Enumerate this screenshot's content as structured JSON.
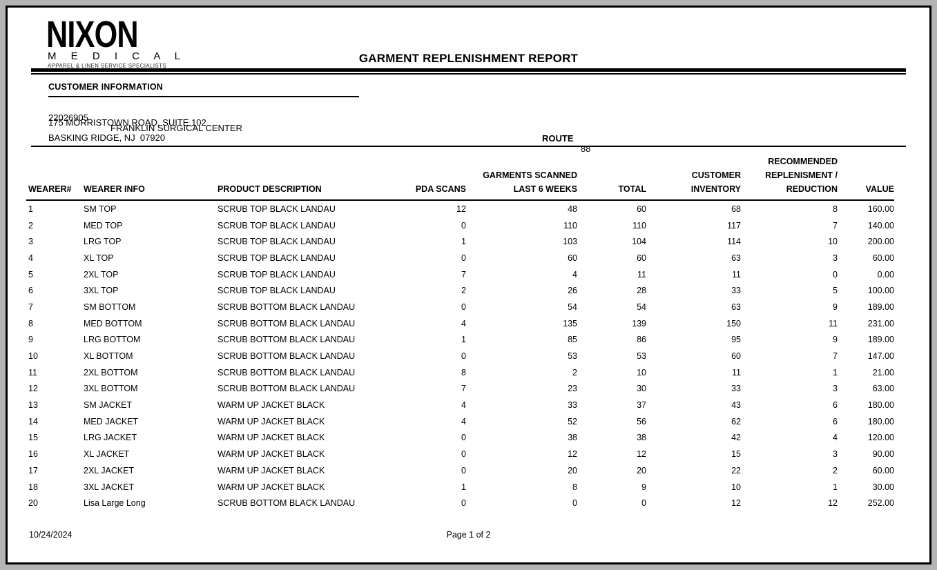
{
  "page": {
    "title": "GARMENT REPLENISHMENT REPORT",
    "footer": {
      "date": "10/24/2024",
      "page_label": "Page 1 of 2"
    }
  },
  "logo": {
    "name": "NIXON",
    "subtitle": "M E D I C A L",
    "tagline": "APPAREL & LINEN SERVICE SPECIALISTS"
  },
  "customer": {
    "section_title": "CUSTOMER INFORMATION",
    "account_number": "22026905",
    "name": "FRANKLIN SURGICAL CENTER",
    "address_line1": "175 MORRISTOWN ROAD, SUITE 102",
    "address_line2": "BASKING RIDGE, NJ  07920",
    "route_label": "ROUTE",
    "route_value": "88"
  },
  "table": {
    "columns": [
      {
        "id": "wearer-number",
        "align": "left",
        "lines": [
          "WEARER#"
        ]
      },
      {
        "id": "wearer-info",
        "align": "left",
        "lines": [
          "WEARER INFO"
        ]
      },
      {
        "id": "product-description",
        "align": "left",
        "lines": [
          "PRODUCT DESCRIPTION"
        ]
      },
      {
        "id": "pda-scans",
        "align": "right",
        "lines": [
          "PDA SCANS"
        ]
      },
      {
        "id": "garments-scanned-last-6-weeks",
        "align": "right",
        "lines": [
          "GARMENTS SCANNED",
          "LAST 6 WEEKS"
        ]
      },
      {
        "id": "total",
        "align": "right",
        "lines": [
          "TOTAL"
        ]
      },
      {
        "id": "customer-inventory",
        "align": "right",
        "lines": [
          "CUSTOMER",
          "INVENTORY"
        ]
      },
      {
        "id": "recommended-replenishment-reduction",
        "align": "right",
        "lines": [
          "RECOMMENDED",
          "REPLENISMENT /",
          "REDUCTION"
        ]
      },
      {
        "id": "value",
        "align": "right",
        "lines": [
          "VALUE"
        ]
      }
    ],
    "rows": [
      [
        "1",
        "SM TOP",
        "SCRUB TOP BLACK LANDAU",
        "12",
        "48",
        "60",
        "68",
        "8",
        "160.00"
      ],
      [
        "2",
        "MED TOP",
        "SCRUB TOP BLACK LANDAU",
        "0",
        "110",
        "110",
        "117",
        "7",
        "140.00"
      ],
      [
        "3",
        "LRG TOP",
        "SCRUB TOP BLACK LANDAU",
        "1",
        "103",
        "104",
        "114",
        "10",
        "200.00"
      ],
      [
        "4",
        "XL TOP",
        "SCRUB TOP BLACK LANDAU",
        "0",
        "60",
        "60",
        "63",
        "3",
        "60.00"
      ],
      [
        "5",
        "2XL TOP",
        "SCRUB TOP BLACK LANDAU",
        "7",
        "4",
        "11",
        "11",
        "0",
        "0.00"
      ],
      [
        "6",
        "3XL TOP",
        "SCRUB TOP BLACK LANDAU",
        "2",
        "26",
        "28",
        "33",
        "5",
        "100.00"
      ],
      [
        "7",
        "SM BOTTOM",
        "SCRUB BOTTOM BLACK LANDAU",
        "0",
        "54",
        "54",
        "63",
        "9",
        "189.00"
      ],
      [
        "8",
        "MED BOTTOM",
        "SCRUB BOTTOM BLACK LANDAU",
        "4",
        "135",
        "139",
        "150",
        "11",
        "231.00"
      ],
      [
        "9",
        "LRG BOTTOM",
        "SCRUB BOTTOM BLACK LANDAU",
        "1",
        "85",
        "86",
        "95",
        "9",
        "189.00"
      ],
      [
        "10",
        "XL BOTTOM",
        "SCRUB BOTTOM BLACK LANDAU",
        "0",
        "53",
        "53",
        "60",
        "7",
        "147.00"
      ],
      [
        "11",
        "2XL BOTTOM",
        "SCRUB BOTTOM BLACK LANDAU",
        "8",
        "2",
        "10",
        "11",
        "1",
        "21.00"
      ],
      [
        "12",
        "3XL BOTTOM",
        "SCRUB BOTTOM BLACK LANDAU",
        "7",
        "23",
        "30",
        "33",
        "3",
        "63.00"
      ],
      [
        "13",
        "SM JACKET",
        "WARM UP JACKET BLACK",
        "4",
        "33",
        "37",
        "43",
        "6",
        "180.00"
      ],
      [
        "14",
        "MED JACKET",
        "WARM UP JACKET BLACK",
        "4",
        "52",
        "56",
        "62",
        "6",
        "180.00"
      ],
      [
        "15",
        "LRG JACKET",
        "WARM UP JACKET BLACK",
        "0",
        "38",
        "38",
        "42",
        "4",
        "120.00"
      ],
      [
        "16",
        "XL JACKET",
        "WARM UP JACKET BLACK",
        "0",
        "12",
        "12",
        "15",
        "3",
        "90.00"
      ],
      [
        "17",
        "2XL JACKET",
        "WARM UP JACKET BLACK",
        "0",
        "20",
        "20",
        "22",
        "2",
        "60.00"
      ],
      [
        "18",
        "3XL JACKET",
        "WARM UP JACKET BLACK",
        "1",
        "8",
        "9",
        "10",
        "1",
        "30.00"
      ],
      [
        "20",
        "Lisa Large Long",
        "SCRUB BOTTOM BLACK LANDAU",
        "0",
        "0",
        "0",
        "12",
        "12",
        "252.00"
      ]
    ]
  },
  "colors": {
    "page_background": "#b4b4b4",
    "paper": "#ffffff",
    "border": "#000000",
    "text": "#000000"
  }
}
